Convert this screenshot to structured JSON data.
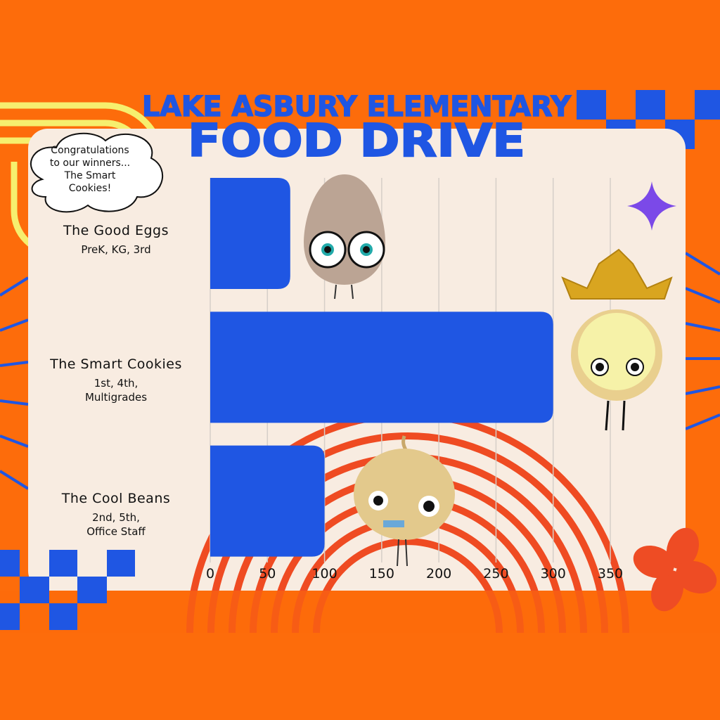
{
  "chart_data": {
    "type": "bar",
    "orientation": "horizontal",
    "title": "LAKE ASBURY ELEMENTARY",
    "subtitle": "FOOD DRIVE",
    "annotation": "Congratulations\nto our winners...\nThe Smart\nCookies!",
    "categories": [
      "The Good Eggs",
      "The Smart Cookies",
      "The Cool Beans"
    ],
    "category_details": [
      "PreK, KG, 3rd",
      "1st, 4th,\nMultigrades",
      "2nd, 5th,\nOffice Staff"
    ],
    "values": [
      70,
      300,
      100
    ],
    "color": "#1f56e3",
    "xlim": [
      0,
      350
    ],
    "xticks": [
      0,
      50,
      100,
      150,
      200,
      250,
      300,
      350
    ],
    "grid": true
  }
}
